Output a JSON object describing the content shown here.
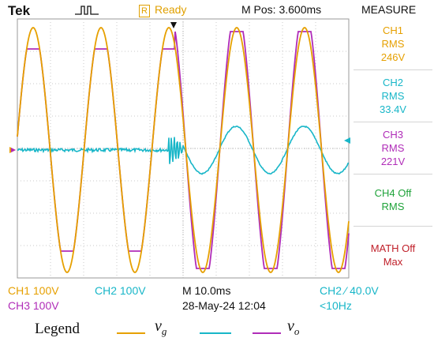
{
  "header": {
    "brand": "Tek",
    "trigger_icon": "pulse-icon",
    "status_badge": "R",
    "status": "Ready",
    "position": "M Pos: 3.600ms",
    "menu": "MEASURE"
  },
  "measure": [
    {
      "line1": "CH1",
      "line2": "RMS",
      "line3": "246V",
      "color": "#e6a000"
    },
    {
      "line1": "CH2",
      "line2": "RMS",
      "line3": "33.4V",
      "color": "#18b6c8"
    },
    {
      "line1": "CH3",
      "line2": "RMS",
      "line3": "221V",
      "color": "#b02cb8"
    },
    {
      "line1": "CH4 Off",
      "line2": "RMS",
      "line3": "",
      "color": "#1fa33a"
    },
    {
      "line1": "MATH Off",
      "line2": "Max",
      "line3": "",
      "color": "#c0202a"
    }
  ],
  "footer": {
    "ch1": "CH1  100V",
    "ch2": "CH2  100V",
    "ch3": "CH3  100V",
    "timebase": "M 10.0ms",
    "date": "28-May-24 12:04",
    "trigger": "CH2  ⁄  40.0V",
    "freq": "<10Hz"
  },
  "legend": {
    "label": "Legend",
    "items": [
      {
        "symbol": "v",
        "sub": "g",
        "color": "#e6a000"
      },
      {
        "symbol": "",
        "sub": "",
        "color": "#18b6c8"
      },
      {
        "symbol": "v",
        "sub": "o",
        "color": "#b02cb8"
      }
    ]
  },
  "colors": {
    "ch1": "#e6a000",
    "ch2": "#18b6c8",
    "ch3": "#b02cb8",
    "grid": "#c9c9c9",
    "screen_bg": "#ffffff"
  }
}
